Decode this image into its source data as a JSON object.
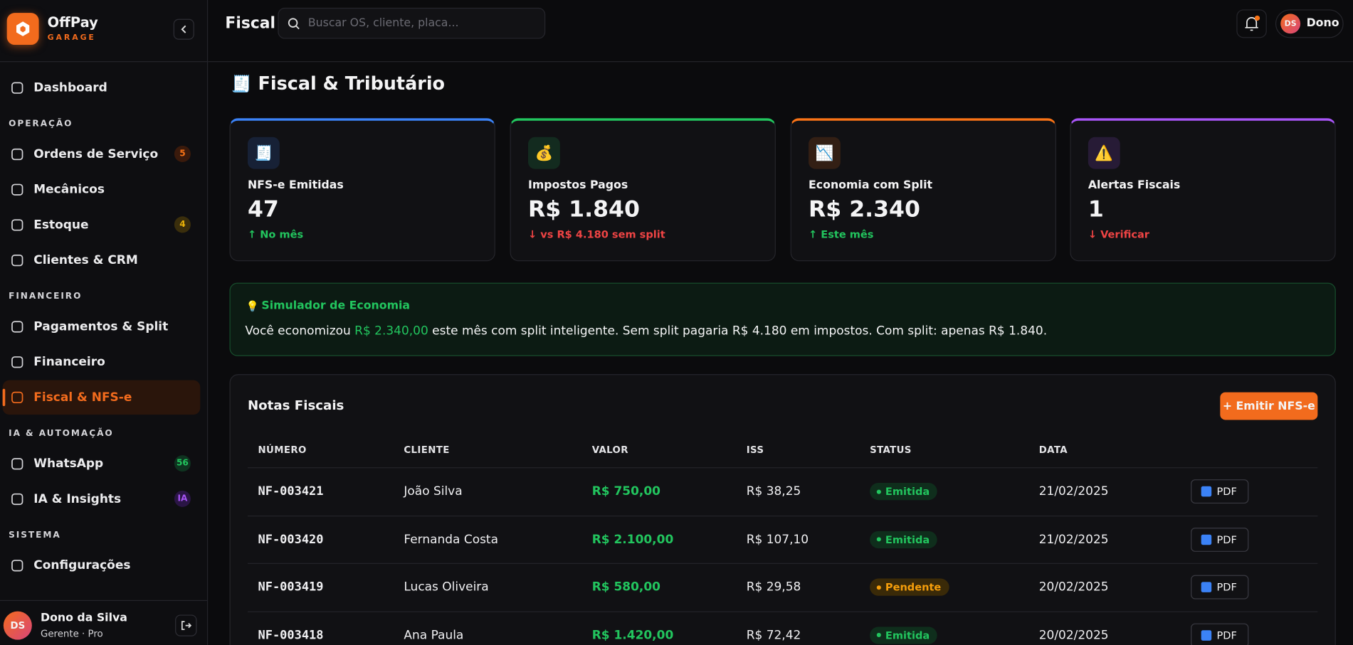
{
  "brand": {
    "name": "OffPay",
    "sub": "GARAGE"
  },
  "sidebar": {
    "items": [
      {
        "kind": "item",
        "label": "Dashboard"
      },
      {
        "kind": "section",
        "label": "OPERAÇÃO"
      },
      {
        "kind": "item",
        "label": "Ordens de Serviço",
        "badge": "5",
        "badge_color": "orange"
      },
      {
        "kind": "item",
        "label": "Mecânicos"
      },
      {
        "kind": "item",
        "label": "Estoque",
        "badge": "4",
        "badge_color": "yellow"
      },
      {
        "kind": "item",
        "label": "Clientes & CRM"
      },
      {
        "kind": "section",
        "label": "FINANCEIRO"
      },
      {
        "kind": "item",
        "label": "Pagamentos & Split"
      },
      {
        "kind": "item",
        "label": "Financeiro"
      },
      {
        "kind": "item",
        "label": "Fiscal & NFS-e",
        "active": true
      },
      {
        "kind": "section",
        "label": "IA & AUTOMAÇÃO"
      },
      {
        "kind": "item",
        "label": "WhatsApp",
        "badge": "56",
        "badge_color": "green"
      },
      {
        "kind": "item",
        "label": "IA & Insights",
        "badge": "IA",
        "badge_color": "purple"
      },
      {
        "kind": "section",
        "label": "SISTEMA"
      },
      {
        "kind": "item",
        "label": "Configurações"
      }
    ],
    "user": {
      "avatar": "DS",
      "name": "Dono da Silva",
      "role": "Gerente · Pro"
    }
  },
  "header": {
    "title": "Fiscal",
    "search_placeholder": "Buscar OS, cliente, placa...",
    "avatar": "DS",
    "user": "Dono"
  },
  "page": {
    "icon": "🧾",
    "title": "Fiscal & Tributário"
  },
  "cards": [
    {
      "icon": "🧾",
      "label": "NFS-e Emitidas",
      "value": "47",
      "note": "↑ No mês",
      "accent": "#3b82f6",
      "note_color": "#22c55e"
    },
    {
      "icon": "💰",
      "label": "Impostos Pagos",
      "value": "R$ 1.840",
      "note": "↓ vs R$ 4.180 sem split",
      "accent": "#22c55e",
      "note_color": "#ef4444"
    },
    {
      "icon": "📉",
      "label": "Economia com Split",
      "value": "R$ 2.340",
      "note": "↑ Este mês",
      "accent": "#f97316",
      "note_color": "#22c55e"
    },
    {
      "icon": "⚠️",
      "label": "Alertas Fiscais",
      "value": "1",
      "note": "↓ Verificar",
      "accent": "#a855f7",
      "note_color": "#ef4444"
    }
  ],
  "simulator": {
    "icon": "💡",
    "title": "Simulador de Economia",
    "text_before": "Você economizou ",
    "highlight": "R$ 2.340,00",
    "text_after": " este mês com split inteligente. Sem split pagaria R$ 4.180 em impostos. Com split: apenas R$ 1.840."
  },
  "table": {
    "title": "Notas Fiscais",
    "button": "+ Emitir NFS-e",
    "columns": [
      "NÚMERO",
      "CLIENTE",
      "VALOR",
      "ISS",
      "STATUS",
      "DATA"
    ],
    "rows": [
      [
        "NF-003421",
        "João Silva",
        "R$ 750,00",
        "R$ 38,25",
        "Emitida",
        "21/02/2025",
        "PDF"
      ],
      [
        "NF-003420",
        "Fernanda Costa",
        "R$ 2.100,00",
        "R$ 107,10",
        "Emitida",
        "21/02/2025",
        "PDF"
      ],
      [
        "NF-003419",
        "Lucas Oliveira",
        "R$ 580,00",
        "R$ 29,58",
        "Pendente",
        "20/02/2025",
        "PDF"
      ],
      [
        "NF-003418",
        "Ana Paula",
        "R$ 1.420,00",
        "R$ 72,42",
        "Emitida",
        "20/02/2025",
        "PDF"
      ]
    ]
  }
}
